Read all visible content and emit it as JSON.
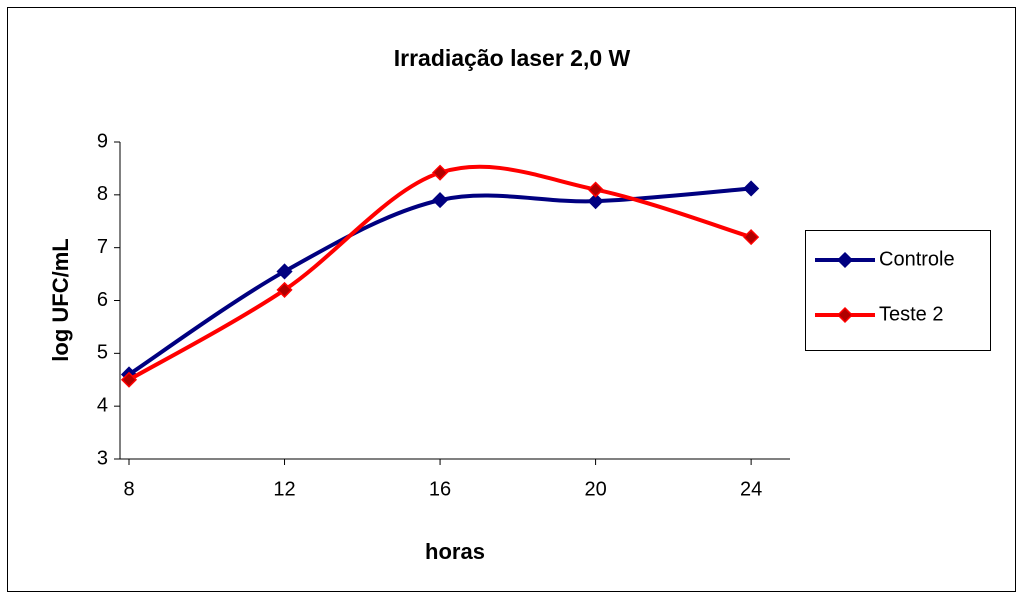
{
  "chart_data": {
    "type": "line",
    "title": "Irradiação laser 2,0 W",
    "x_label": "horas",
    "y_label": "log UFC/mL",
    "x": [
      8,
      12,
      16,
      20,
      24
    ],
    "series": [
      {
        "name": "Controle",
        "color": "#000080",
        "marker_color": "#000080",
        "values": [
          4.6,
          6.55,
          7.9,
          7.88,
          8.12
        ]
      },
      {
        "name": "Teste 2",
        "color": "#ff0000",
        "marker_color": "#b00000",
        "values": [
          4.5,
          6.2,
          8.42,
          8.1,
          7.2
        ]
      }
    ],
    "xlim": [
      8,
      25
    ],
    "xticks": [
      8,
      12,
      16,
      20,
      24
    ],
    "ylim": [
      3,
      9
    ],
    "yticks": [
      3,
      4,
      5,
      6,
      7,
      8,
      9
    ],
    "smooth": true,
    "legend": "right"
  }
}
